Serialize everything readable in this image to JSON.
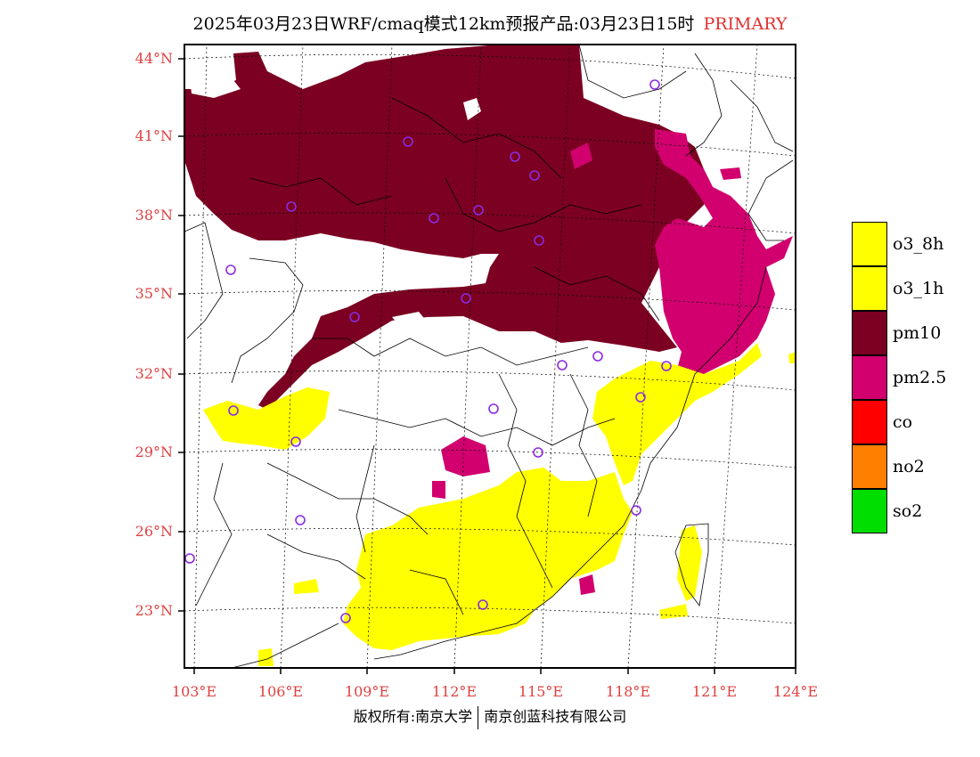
{
  "title": {
    "main": "2025年03月23日WRF/cmaq模式12km预报产品:03月23日15时",
    "tag": "PRIMARY"
  },
  "lat_labels": [
    "44°N",
    "41°N",
    "38°N",
    "35°N",
    "32°N",
    "29°N",
    "26°N",
    "23°N"
  ],
  "lon_labels": [
    "103°E",
    "106°E",
    "109°E",
    "112°E",
    "115°E",
    "118°E",
    "121°E",
    "124°E"
  ],
  "legend": [
    {
      "label": "o3_8h",
      "color": "#ffff00"
    },
    {
      "label": "o3_1h",
      "color": "#ffff00"
    },
    {
      "label": "pm10",
      "color": "#7b0022"
    },
    {
      "label": "pm2.5",
      "color": "#d1006e"
    },
    {
      "label": "co",
      "color": "#ff0000"
    },
    {
      "label": "no2",
      "color": "#ff7f00"
    },
    {
      "label": "so2",
      "color": "#00dd00"
    }
  ],
  "copyright": {
    "left": "版权所有:南京大学",
    "right": "南京创蓝科技有限公司"
  },
  "colors": {
    "pm10": "#7b0022",
    "pm25": "#d1006e",
    "o3": "#ffff00",
    "station": "#8a2be2",
    "label": "#e04040"
  }
}
